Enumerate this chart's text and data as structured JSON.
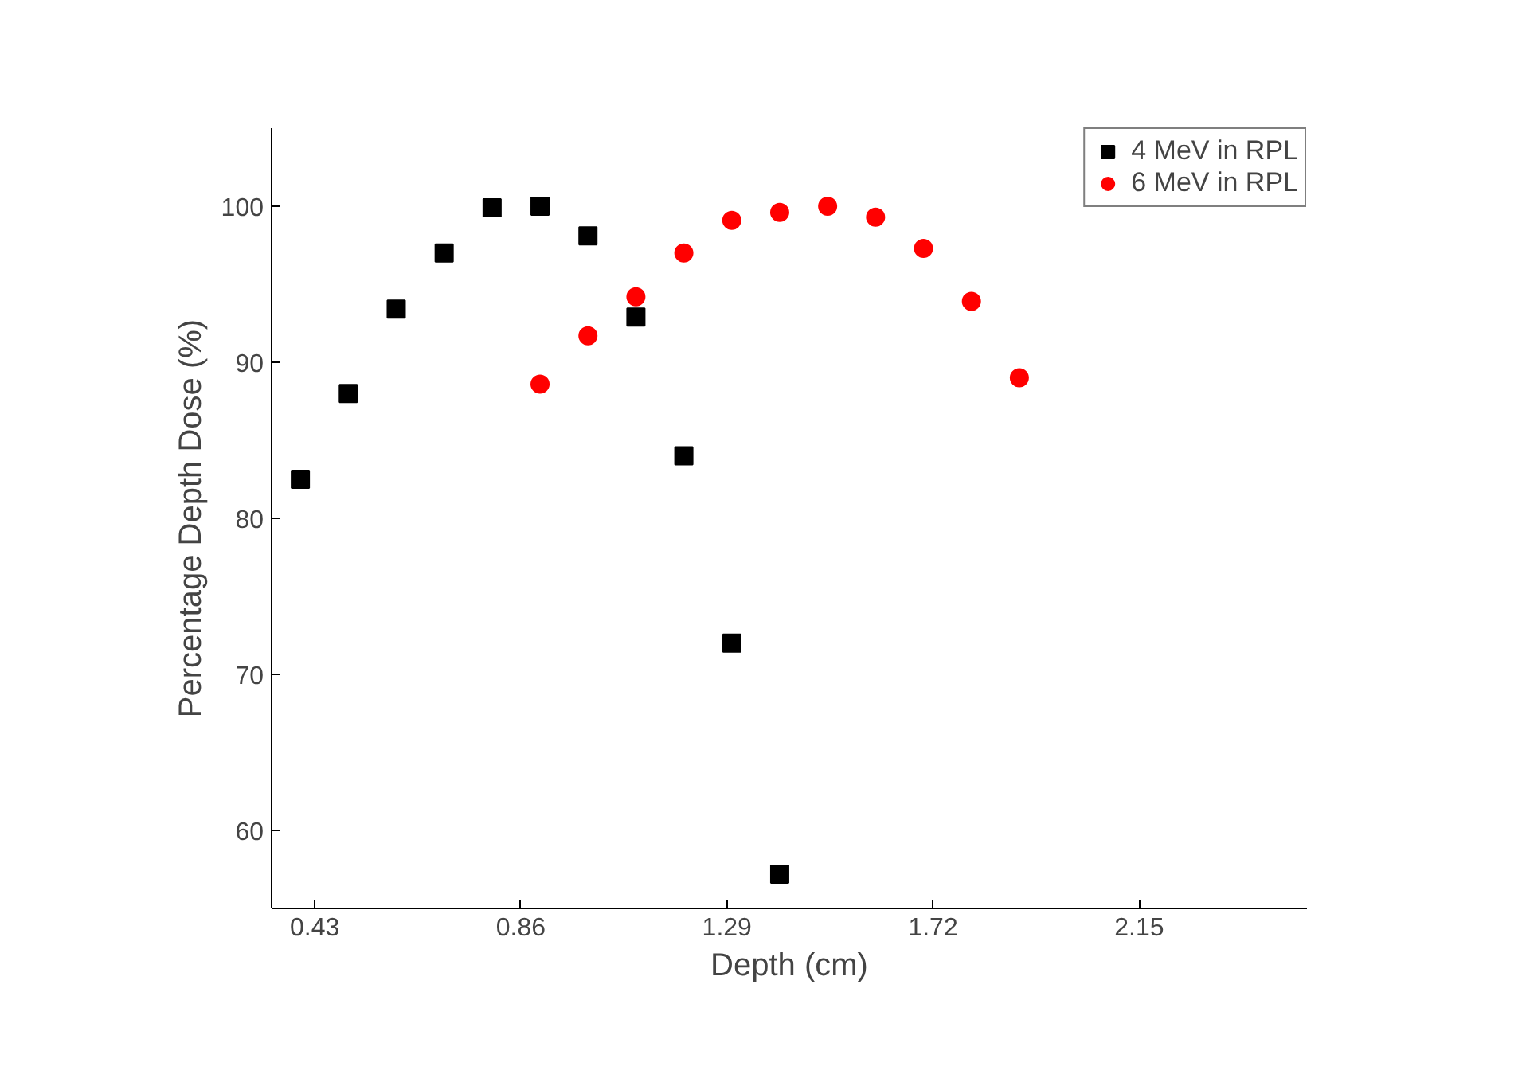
{
  "chart_data": {
    "type": "scatter",
    "xlabel": "Depth (cm)",
    "ylabel": "Percentage Depth Dose (%)",
    "xlim": [
      0.34,
      2.5
    ],
    "ylim": [
      55,
      105
    ],
    "xticks": [
      0.43,
      0.86,
      1.29,
      1.72,
      2.15
    ],
    "yticks": [
      60,
      70,
      80,
      90,
      100
    ],
    "grid": false,
    "legend": "top right",
    "series": [
      {
        "name": "4 MeV in RPL",
        "color": "#000000",
        "marker": "square",
        "x": [
          0.4,
          0.5,
          0.6,
          0.7,
          0.8,
          0.9,
          1.0,
          1.1,
          1.2,
          1.3,
          1.4
        ],
        "values": [
          82.5,
          88,
          93.4,
          97,
          99.9,
          100,
          98.1,
          92.9,
          84,
          72,
          57.2
        ]
      },
      {
        "name": "6 MeV in RPL",
        "color": "#ff0000",
        "marker": "circle",
        "x": [
          0.9,
          1.0,
          1.1,
          1.2,
          1.3,
          1.4,
          1.5,
          1.6,
          1.7,
          1.8,
          1.9
        ],
        "values": [
          88.6,
          91.7,
          94.2,
          97,
          99.1,
          99.6,
          100,
          99.3,
          97.3,
          93.9,
          89
        ]
      }
    ]
  }
}
